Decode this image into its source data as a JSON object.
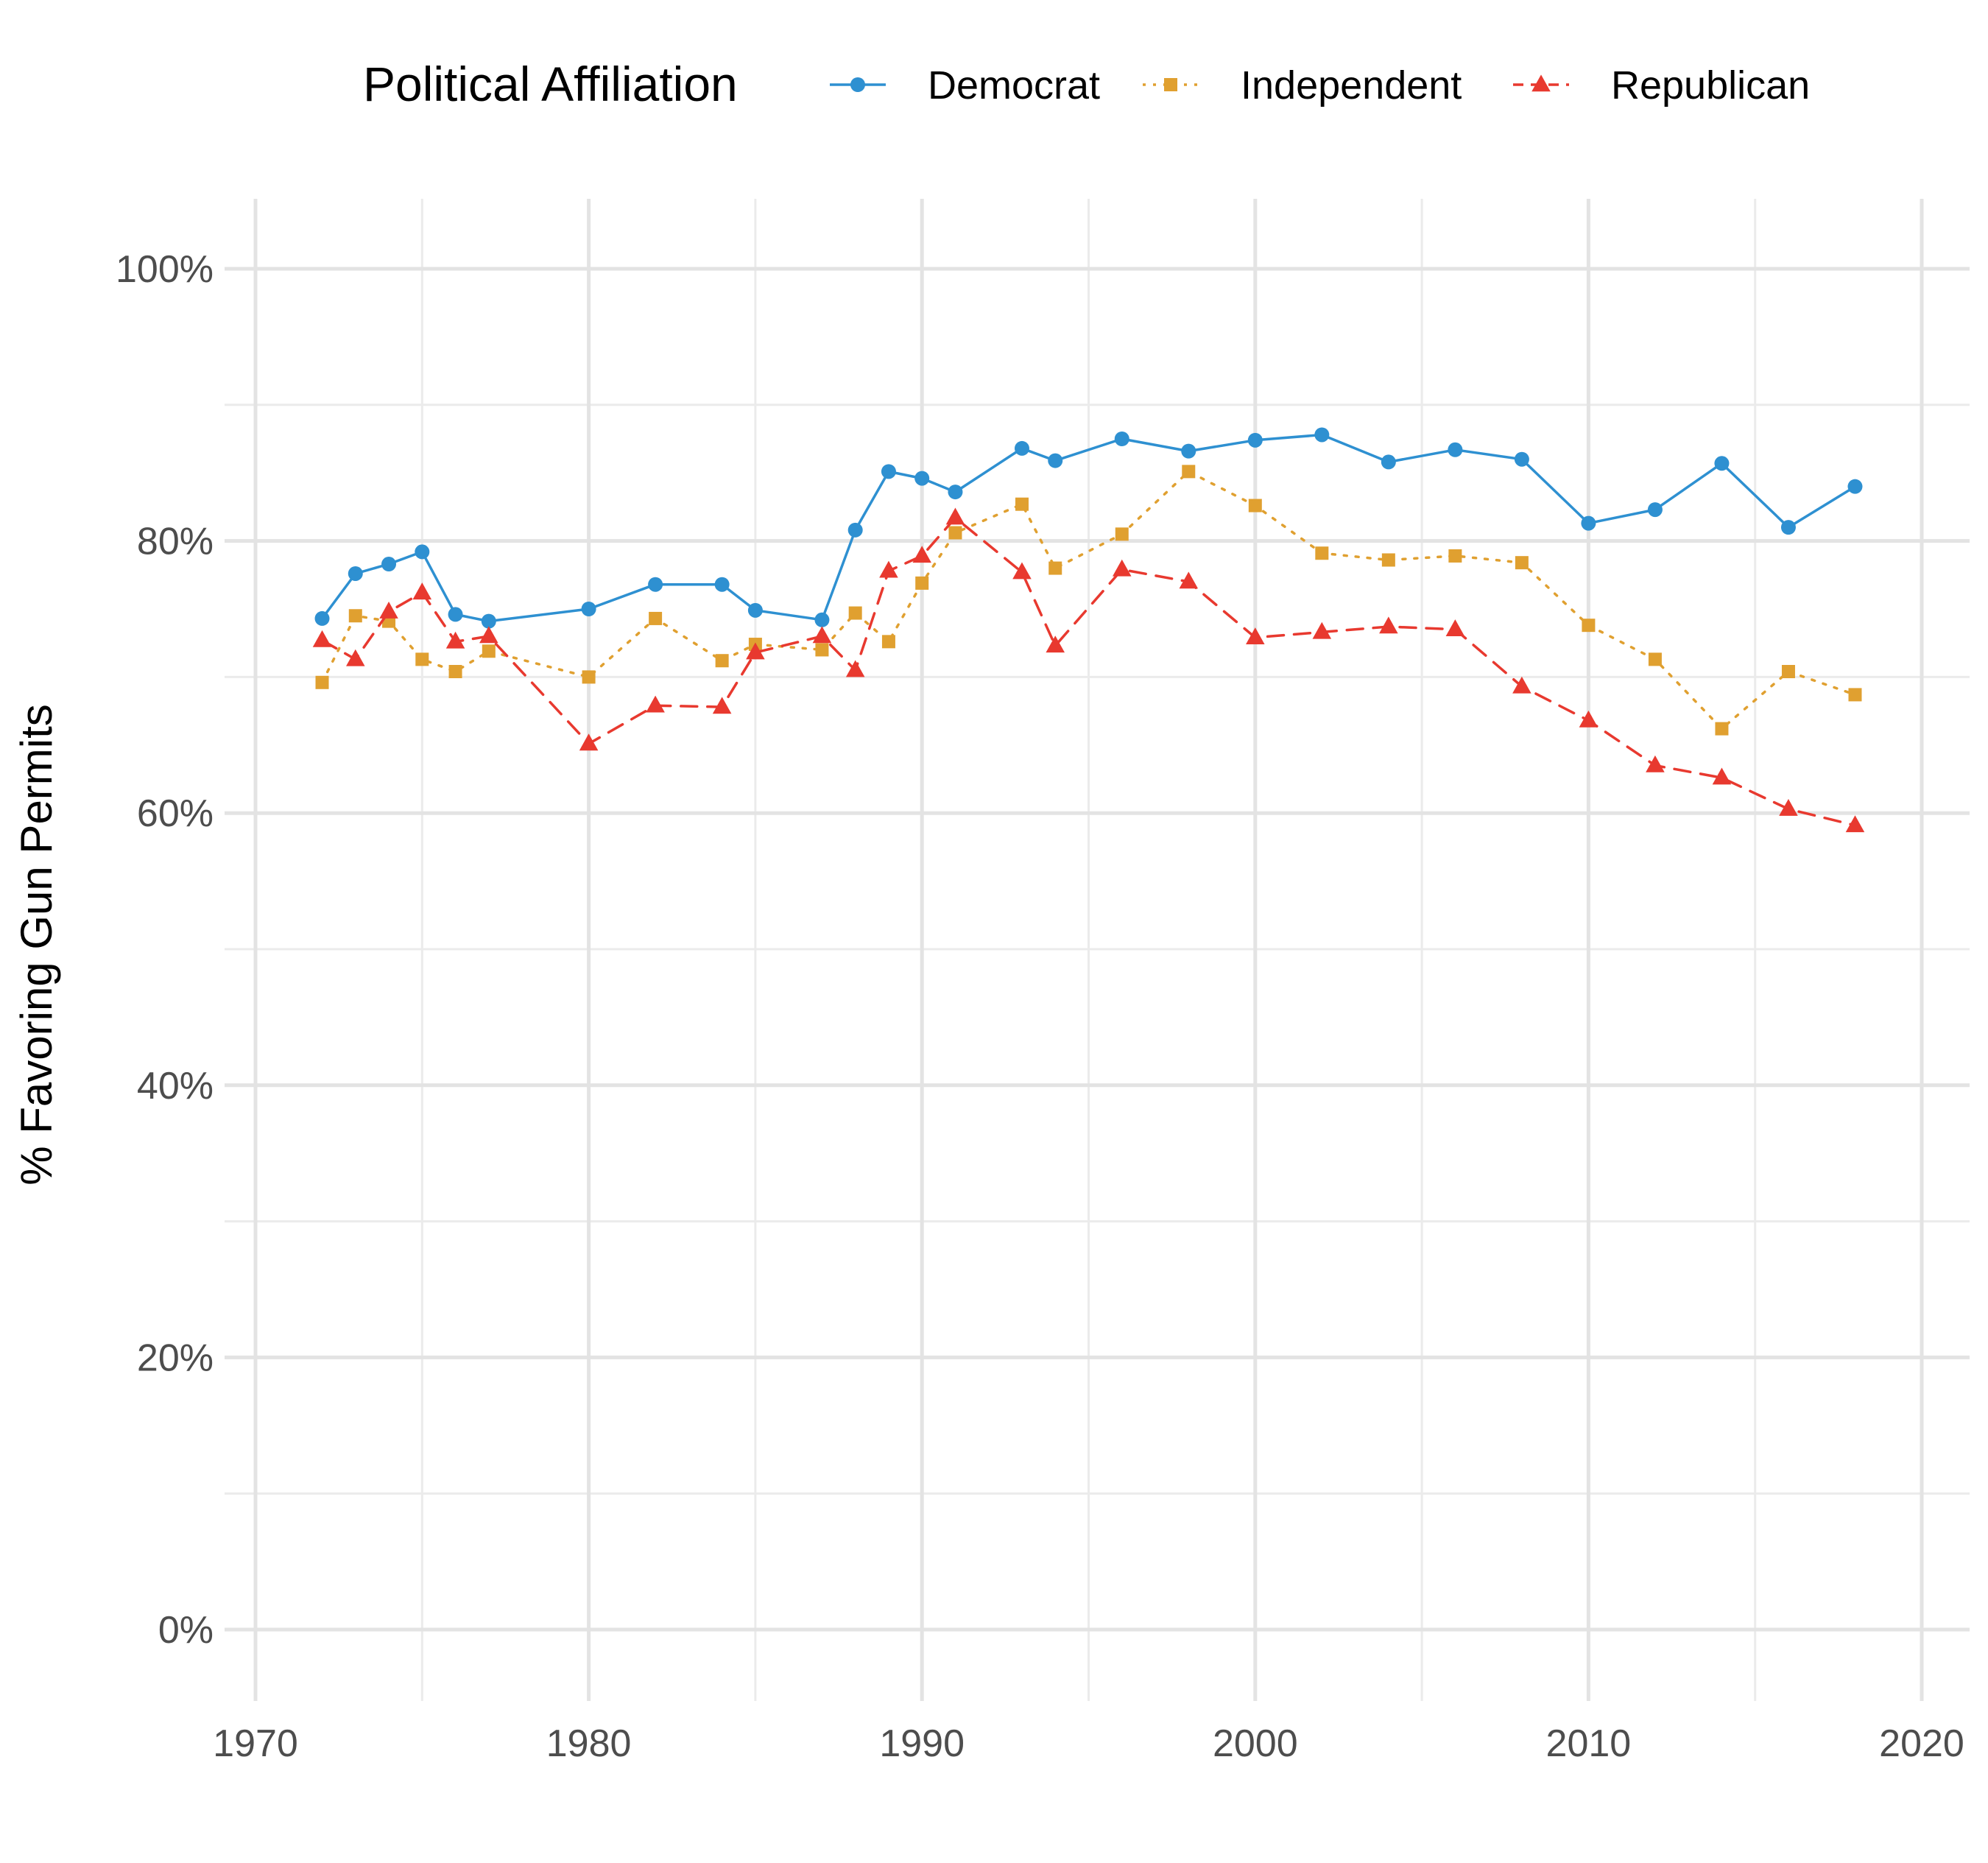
{
  "chart_data": {
    "type": "line",
    "title": "",
    "xlabel": "",
    "ylabel": "% Favoring Gun Permits",
    "xlim": [
      1970,
      2020
    ],
    "ylim": [
      0,
      1
    ],
    "x_ticks": [
      1970,
      1980,
      1990,
      2000,
      2010,
      2020
    ],
    "x_tick_labels": [
      "1970",
      "1980",
      "1990",
      "2000",
      "2010",
      "2020"
    ],
    "y_ticks": [
      0,
      0.2,
      0.4,
      0.6,
      0.8,
      1.0
    ],
    "y_tick_labels": [
      "0%",
      "20%",
      "40%",
      "60%",
      "80%",
      "100%"
    ],
    "grid": true,
    "legend": {
      "title": "Political Affiliation",
      "position": "top"
    },
    "series": [
      {
        "name": "Democrat",
        "color": "#2E90D1",
        "line_style": "solid",
        "marker": "circle",
        "x": [
          1972,
          1973,
          1974,
          1975,
          1976,
          1977,
          1980,
          1982,
          1984,
          1985,
          1987,
          1988,
          1989,
          1990,
          1991,
          1993,
          1994,
          1996,
          1998,
          2000,
          2002,
          2004,
          2006,
          2008,
          2010,
          2012,
          2014,
          2016,
          2018
        ],
        "y": [
          0.743,
          0.776,
          0.783,
          0.792,
          0.746,
          0.741,
          0.75,
          0.768,
          0.768,
          0.749,
          0.742,
          0.808,
          0.851,
          0.846,
          0.836,
          0.868,
          0.859,
          0.875,
          0.866,
          0.874,
          0.878,
          0.858,
          0.867,
          0.86,
          0.813,
          0.823,
          0.857,
          0.81,
          0.84
        ]
      },
      {
        "name": "Independent",
        "color": "#E0A030",
        "line_style": "dotted",
        "marker": "square",
        "x": [
          1972,
          1973,
          1974,
          1975,
          1976,
          1977,
          1980,
          1982,
          1984,
          1985,
          1987,
          1988,
          1989,
          1990,
          1991,
          1993,
          1994,
          1996,
          1998,
          2000,
          2002,
          2004,
          2006,
          2008,
          2010,
          2012,
          2014,
          2016,
          2018
        ],
        "y": [
          0.696,
          0.745,
          0.741,
          0.713,
          0.704,
          0.719,
          0.7,
          0.743,
          0.712,
          0.724,
          0.72,
          0.747,
          0.726,
          0.769,
          0.806,
          0.827,
          0.78,
          0.805,
          0.851,
          0.826,
          0.791,
          0.786,
          0.789,
          0.784,
          0.738,
          0.713,
          0.662,
          0.704,
          0.687
        ]
      },
      {
        "name": "Republican",
        "color": "#E8392F",
        "line_style": "dashed",
        "marker": "triangle",
        "x": [
          1972,
          1973,
          1974,
          1975,
          1976,
          1977,
          1980,
          1982,
          1984,
          1985,
          1987,
          1988,
          1989,
          1990,
          1991,
          1993,
          1994,
          1996,
          1998,
          2000,
          2002,
          2004,
          2006,
          2008,
          2010,
          2012,
          2014,
          2016,
          2018
        ],
        "y": [
          0.727,
          0.713,
          0.748,
          0.762,
          0.726,
          0.73,
          0.651,
          0.679,
          0.678,
          0.718,
          0.73,
          0.705,
          0.778,
          0.789,
          0.817,
          0.777,
          0.723,
          0.779,
          0.77,
          0.729,
          0.733,
          0.737,
          0.735,
          0.693,
          0.668,
          0.635,
          0.626,
          0.603,
          0.591
        ]
      }
    ]
  }
}
